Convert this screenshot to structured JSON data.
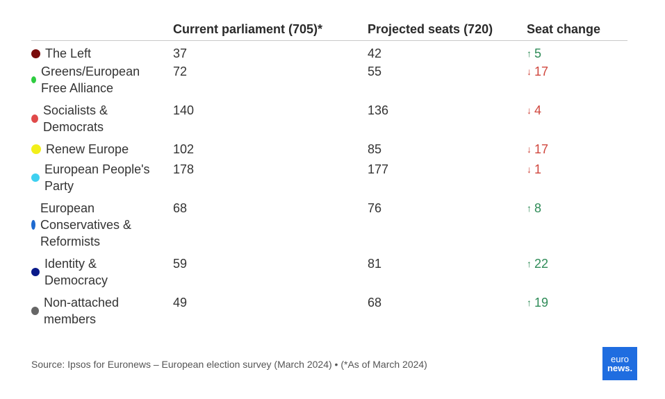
{
  "header": {
    "party": "",
    "current": "Current parliament (705)*",
    "projected": "Projected seats (720)",
    "change": "Seat change"
  },
  "rows": [
    {
      "party": "The Left",
      "color": "#7a0c0c",
      "current": "37",
      "projected": "42",
      "change": "5",
      "direction": "up"
    },
    {
      "party": "Greens/European Free Alliance",
      "color": "#2ecc40",
      "current": "72",
      "projected": "55",
      "change": "17",
      "direction": "down"
    },
    {
      "party": "Socialists & Democrats",
      "color": "#e04a4a",
      "current": "140",
      "projected": "136",
      "change": "4",
      "direction": "down"
    },
    {
      "party": "Renew Europe",
      "color": "#f2ef1a",
      "current": "102",
      "projected": "85",
      "change": "17",
      "direction": "down"
    },
    {
      "party": "European People's Party",
      "color": "#3fd0f0",
      "current": "178",
      "projected": "177",
      "change": "1",
      "direction": "down"
    },
    {
      "party": "European Conservatives & Reformists",
      "color": "#1e6ad0",
      "current": "68",
      "projected": "76",
      "change": "8",
      "direction": "up"
    },
    {
      "party": "Identity & Democracy",
      "color": "#0a1a8a",
      "current": "59",
      "projected": "81",
      "change": "22",
      "direction": "up"
    },
    {
      "party": "Non-attached members",
      "color": "#666666",
      "current": "49",
      "projected": "68",
      "change": "19",
      "direction": "up"
    }
  ],
  "footer": {
    "source": "Source: Ipsos for Euronews – European election survey (March 2024) • (*As of March 2024)"
  },
  "logo": {
    "line1": "euro",
    "line2": "news."
  }
}
